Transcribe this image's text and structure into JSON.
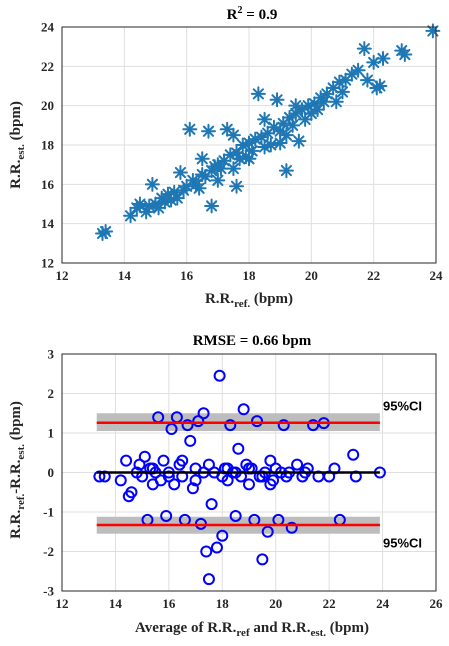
{
  "chart_data": [
    {
      "type": "scatter",
      "title_prefix": "R",
      "title_sup": "2",
      "title_suffix": " = 0.9",
      "xlabel_main": "R.R.",
      "xlabel_sub": "ref.",
      "xlabel_unit": " (bpm)",
      "ylabel_main": "R.R.",
      "ylabel_sub": "est.",
      "ylabel_unit": " (bpm)",
      "xlim": [
        12,
        24
      ],
      "ylim": [
        12,
        24
      ],
      "xticks": [
        12,
        14,
        16,
        18,
        20,
        22,
        24
      ],
      "yticks": [
        12,
        14,
        16,
        18,
        20,
        22,
        24
      ],
      "grid": true,
      "marker": "asterisk",
      "color": "#1f77b4",
      "points": [
        [
          13.3,
          13.5
        ],
        [
          13.4,
          13.6
        ],
        [
          14.2,
          14.4
        ],
        [
          14.4,
          14.8
        ],
        [
          14.5,
          15.0
        ],
        [
          14.7,
          14.6
        ],
        [
          14.8,
          14.9
        ],
        [
          15.0,
          15.0
        ],
        [
          15.1,
          14.8
        ],
        [
          14.9,
          16.0
        ],
        [
          15.2,
          15.3
        ],
        [
          15.3,
          15.1
        ],
        [
          15.4,
          15.5
        ],
        [
          15.5,
          15.2
        ],
        [
          15.6,
          15.6
        ],
        [
          15.7,
          15.3
        ],
        [
          15.8,
          16.6
        ],
        [
          15.9,
          15.7
        ],
        [
          16.0,
          15.9
        ],
        [
          16.1,
          18.8
        ],
        [
          16.2,
          16.2
        ],
        [
          16.3,
          16.0
        ],
        [
          16.4,
          15.8
        ],
        [
          16.5,
          16.5
        ],
        [
          16.6,
          16.4
        ],
        [
          16.7,
          18.7
        ],
        [
          16.8,
          16.7
        ],
        [
          16.9,
          16.9
        ],
        [
          17.0,
          17.0
        ],
        [
          17.1,
          16.8
        ],
        [
          17.2,
          17.2
        ],
        [
          17.3,
          18.8
        ],
        [
          17.4,
          17.5
        ],
        [
          17.5,
          16.8
        ],
        [
          17.6,
          17.6
        ],
        [
          17.7,
          17.3
        ],
        [
          17.8,
          18.0
        ],
        [
          17.9,
          17.4
        ],
        [
          18.0,
          18.1
        ],
        [
          18.1,
          17.7
        ],
        [
          18.2,
          18.3
        ],
        [
          18.3,
          20.6
        ],
        [
          18.4,
          18.4
        ],
        [
          18.5,
          17.9
        ],
        [
          18.6,
          18.6
        ],
        [
          18.7,
          18.0
        ],
        [
          18.8,
          18.9
        ],
        [
          18.9,
          20.3
        ],
        [
          19.0,
          18.7
        ],
        [
          19.1,
          19.1
        ],
        [
          19.2,
          18.5
        ],
        [
          19.3,
          19.4
        ],
        [
          19.4,
          19.0
        ],
        [
          19.5,
          19.6
        ],
        [
          19.6,
          18.2
        ],
        [
          19.7,
          19.8
        ],
        [
          19.8,
          19.3
        ],
        [
          19.9,
          20.0
        ],
        [
          20.0,
          19.6
        ],
        [
          20.1,
          20.1
        ],
        [
          20.2,
          19.8
        ],
        [
          20.3,
          20.4
        ],
        [
          20.4,
          20.2
        ],
        [
          20.5,
          20.6
        ],
        [
          20.7,
          20.9
        ],
        [
          20.9,
          21.2
        ],
        [
          21.1,
          21.3
        ],
        [
          21.3,
          21.6
        ],
        [
          21.5,
          21.8
        ],
        [
          21.7,
          22.9
        ],
        [
          21.8,
          21.3
        ],
        [
          22.0,
          22.2
        ],
        [
          22.1,
          20.9
        ],
        [
          22.2,
          21.0
        ],
        [
          22.3,
          22.4
        ],
        [
          22.9,
          22.8
        ],
        [
          23.0,
          22.6
        ],
        [
          23.9,
          23.8
        ],
        [
          16.5,
          17.3
        ],
        [
          17.0,
          16.2
        ],
        [
          17.5,
          18.5
        ],
        [
          18.0,
          17.3
        ],
        [
          18.5,
          19.3
        ],
        [
          19.0,
          18.1
        ],
        [
          19.5,
          20.0
        ],
        [
          19.2,
          16.7
        ],
        [
          20.8,
          20.2
        ],
        [
          21.0,
          20.7
        ],
        [
          16.8,
          14.9
        ],
        [
          17.6,
          15.9
        ]
      ]
    },
    {
      "type": "scatter",
      "title": "RMSE = 0.66 bpm",
      "xlabel_main": "Average of R.R.",
      "xlabel_sub1": "ref",
      "xlabel_mid": " and R.R.",
      "xlabel_sub2": "est.",
      "xlabel_unit": " (bpm)",
      "ylabel_main1": "R.R.",
      "ylabel_sub1": "ref.",
      "ylabel_mid": "-R.R.",
      "ylabel_sub2": "est.",
      "ylabel_unit": " (bpm)",
      "xlim": [
        12,
        26
      ],
      "ylim": [
        -3,
        3
      ],
      "xticks": [
        12,
        14,
        16,
        18,
        20,
        22,
        24,
        26
      ],
      "yticks": [
        -3,
        -2,
        -1,
        0,
        1,
        2,
        3
      ],
      "grid": true,
      "marker": "circle",
      "color": "#0000ff",
      "mean_line": {
        "x_range": [
          13.3,
          23.9
        ],
        "y": 0.0
      },
      "upper_loa": {
        "value": 1.26,
        "band": [
          1.05,
          1.5
        ],
        "x_range": [
          13.3,
          23.9
        ],
        "label": "95%CI"
      },
      "lower_loa": {
        "value": -1.33,
        "band": [
          -1.55,
          -1.12
        ],
        "x_range": [
          13.3,
          23.9
        ],
        "label": "95%CI"
      },
      "points": [
        [
          13.4,
          -0.1
        ],
        [
          13.6,
          -0.1
        ],
        [
          14.2,
          -0.2
        ],
        [
          14.4,
          0.3
        ],
        [
          14.5,
          -0.6
        ],
        [
          14.6,
          -0.5
        ],
        [
          14.8,
          0.0
        ],
        [
          14.9,
          0.2
        ],
        [
          15.0,
          -0.1
        ],
        [
          15.1,
          0.4
        ],
        [
          15.2,
          -1.2
        ],
        [
          15.3,
          0.1
        ],
        [
          15.4,
          -0.3
        ],
        [
          15.5,
          0.0
        ],
        [
          15.6,
          1.4
        ],
        [
          15.7,
          -0.2
        ],
        [
          15.8,
          0.3
        ],
        [
          15.9,
          -1.1
        ],
        [
          16.0,
          0.0
        ],
        [
          16.1,
          1.1
        ],
        [
          16.2,
          -0.3
        ],
        [
          16.3,
          1.4
        ],
        [
          16.4,
          0.2
        ],
        [
          16.5,
          -0.1
        ],
        [
          16.6,
          -1.2
        ],
        [
          16.7,
          1.2
        ],
        [
          16.8,
          0.8
        ],
        [
          16.9,
          -0.4
        ],
        [
          17.0,
          0.1
        ],
        [
          17.1,
          1.3
        ],
        [
          17.2,
          -1.3
        ],
        [
          17.3,
          1.5
        ],
        [
          17.4,
          -2.0
        ],
        [
          17.5,
          -2.7
        ],
        [
          17.6,
          -0.8
        ],
        [
          17.7,
          0.0
        ],
        [
          17.8,
          -1.9
        ],
        [
          17.9,
          2.45
        ],
        [
          18.0,
          -1.6
        ],
        [
          18.1,
          0.1
        ],
        [
          18.2,
          -0.2
        ],
        [
          18.3,
          1.2
        ],
        [
          18.4,
          0.0
        ],
        [
          18.5,
          -1.1
        ],
        [
          18.6,
          0.6
        ],
        [
          18.7,
          -0.1
        ],
        [
          18.8,
          1.6
        ],
        [
          18.9,
          0.2
        ],
        [
          19.0,
          -0.3
        ],
        [
          19.1,
          0.1
        ],
        [
          19.2,
          -1.2
        ],
        [
          19.3,
          1.3
        ],
        [
          19.4,
          -0.1
        ],
        [
          19.5,
          -2.2
        ],
        [
          19.6,
          0.0
        ],
        [
          19.7,
          -1.5
        ],
        [
          19.8,
          0.3
        ],
        [
          19.9,
          -0.2
        ],
        [
          20.0,
          0.1
        ],
        [
          20.1,
          -1.2
        ],
        [
          20.2,
          0.0
        ],
        [
          20.3,
          1.2
        ],
        [
          20.4,
          -0.1
        ],
        [
          20.6,
          -1.4
        ],
        [
          20.8,
          0.2
        ],
        [
          21.0,
          -0.1
        ],
        [
          21.2,
          0.1
        ],
        [
          21.4,
          1.2
        ],
        [
          21.6,
          -0.1
        ],
        [
          21.8,
          1.25
        ],
        [
          22.0,
          -0.1
        ],
        [
          22.2,
          0.1
        ],
        [
          22.4,
          -1.2
        ],
        [
          22.9,
          0.45
        ],
        [
          23.0,
          -0.1
        ],
        [
          23.9,
          0.0
        ],
        [
          16.5,
          0.3
        ],
        [
          17.0,
          -0.2
        ],
        [
          17.5,
          0.2
        ],
        [
          18.0,
          -0.1
        ],
        [
          18.5,
          0.0
        ],
        [
          19.0,
          0.1
        ],
        [
          19.5,
          -0.1
        ],
        [
          20.5,
          0.0
        ],
        [
          21.1,
          0.0
        ],
        [
          15.4,
          0.1
        ],
        [
          16.0,
          -0.1
        ],
        [
          17.3,
          0.0
        ],
        [
          18.2,
          0.1
        ],
        [
          19.8,
          -0.3
        ]
      ]
    }
  ]
}
